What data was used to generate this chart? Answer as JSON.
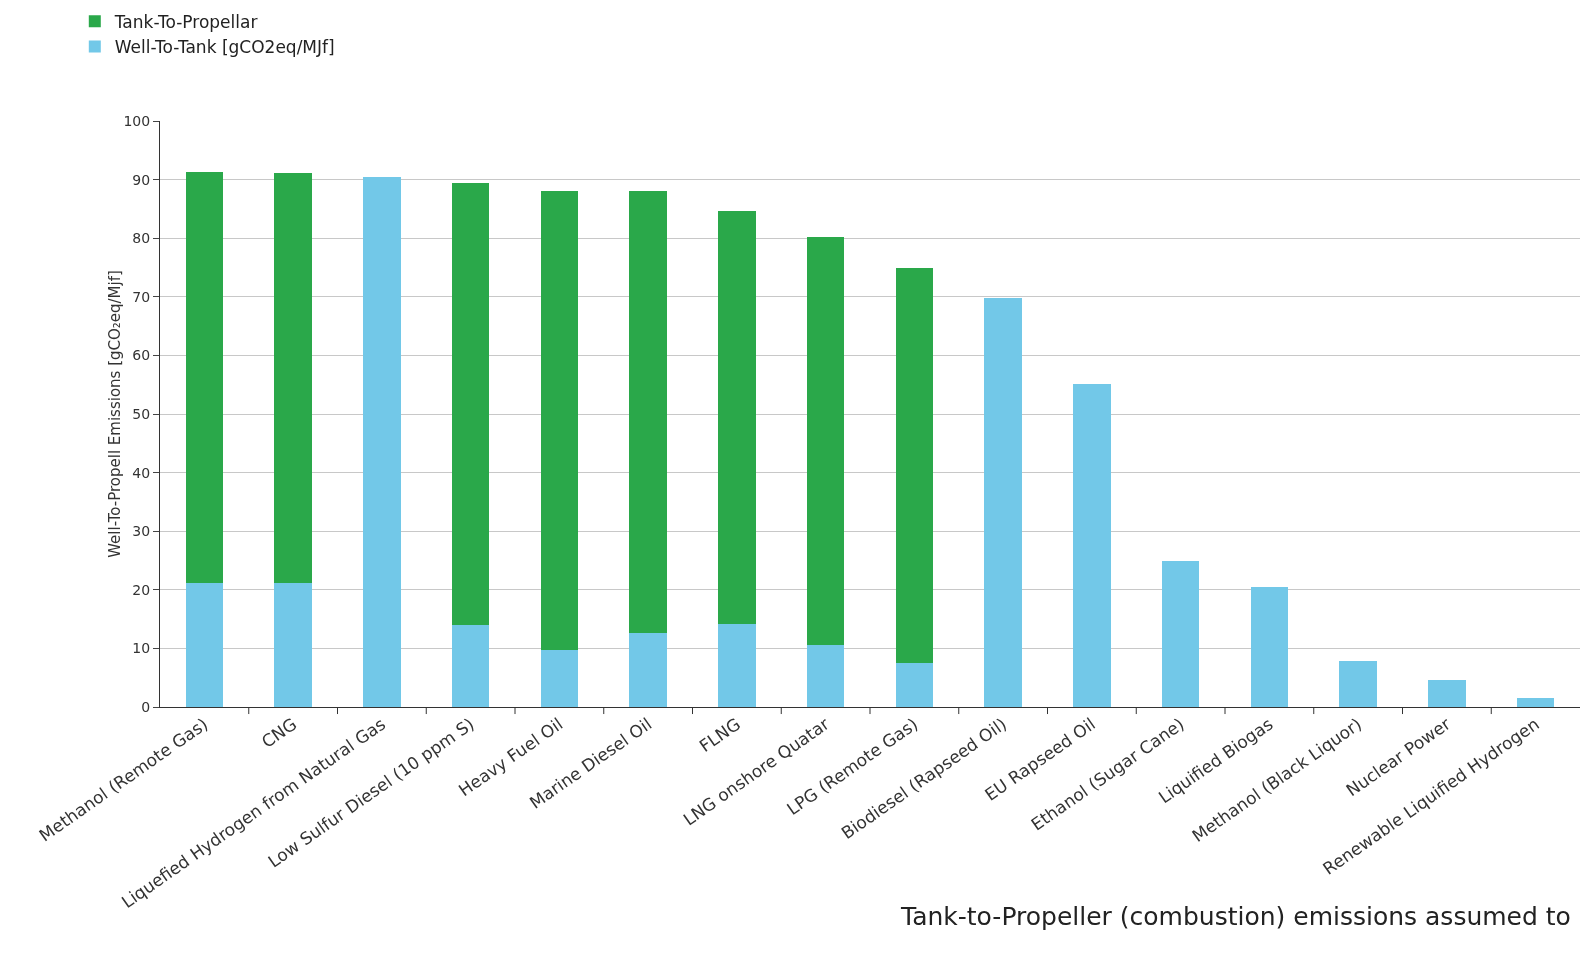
{
  "chart_data": {
    "type": "bar",
    "stacked": true,
    "ylabel": "Well-To-Propell Emissions [gCO₂eq/Mjf]",
    "categories": [
      "Methanol (Remote Gas)",
      "CNG",
      "Liquefied Hydrogen from Natural Gas",
      "Low Sulfur Diesel (10 ppm S)",
      "Heavy Fuel Oil",
      "Marine Diesel Oil",
      "FLNG",
      "LNG onshore Quatar",
      "LPG (Remote Gas)",
      "Biodiesel (Rapseed Oil)",
      "EU Rapseed Oil",
      "Ethanol (Sugar Cane)",
      "Liquified Biogas",
      "Methanol (Black Liquor)",
      "Nuclear Power",
      "Renewable Liquified Hydrogen"
    ],
    "series": [
      {
        "name": "Well-To-Tank [gCO2eq/MJf]",
        "color": "#72c8e8",
        "values": [
          21.2,
          21.2,
          90.5,
          14,
          9.8,
          12.7,
          14.2,
          10.5,
          7.5,
          69.8,
          55.1,
          24.9,
          20.5,
          7.8,
          4.6,
          1.5
        ]
      },
      {
        "name": "Tank-To-Propellar",
        "color": "#2aa84a",
        "values": [
          70.1,
          69.9,
          null,
          75.5,
          78.3,
          75.4,
          70.5,
          69.7,
          67.4,
          null,
          null,
          null,
          null,
          null,
          null,
          null
        ]
      }
    ],
    "ylim": [
      0,
      100
    ],
    "yticks": [
      0,
      10,
      20,
      30,
      40,
      50,
      60,
      70,
      80,
      90,
      100
    ],
    "grid": "y",
    "legend": "top left",
    "annotations": [
      "Tank-to-Propeller (combustion) emissions assumed to"
    ]
  }
}
